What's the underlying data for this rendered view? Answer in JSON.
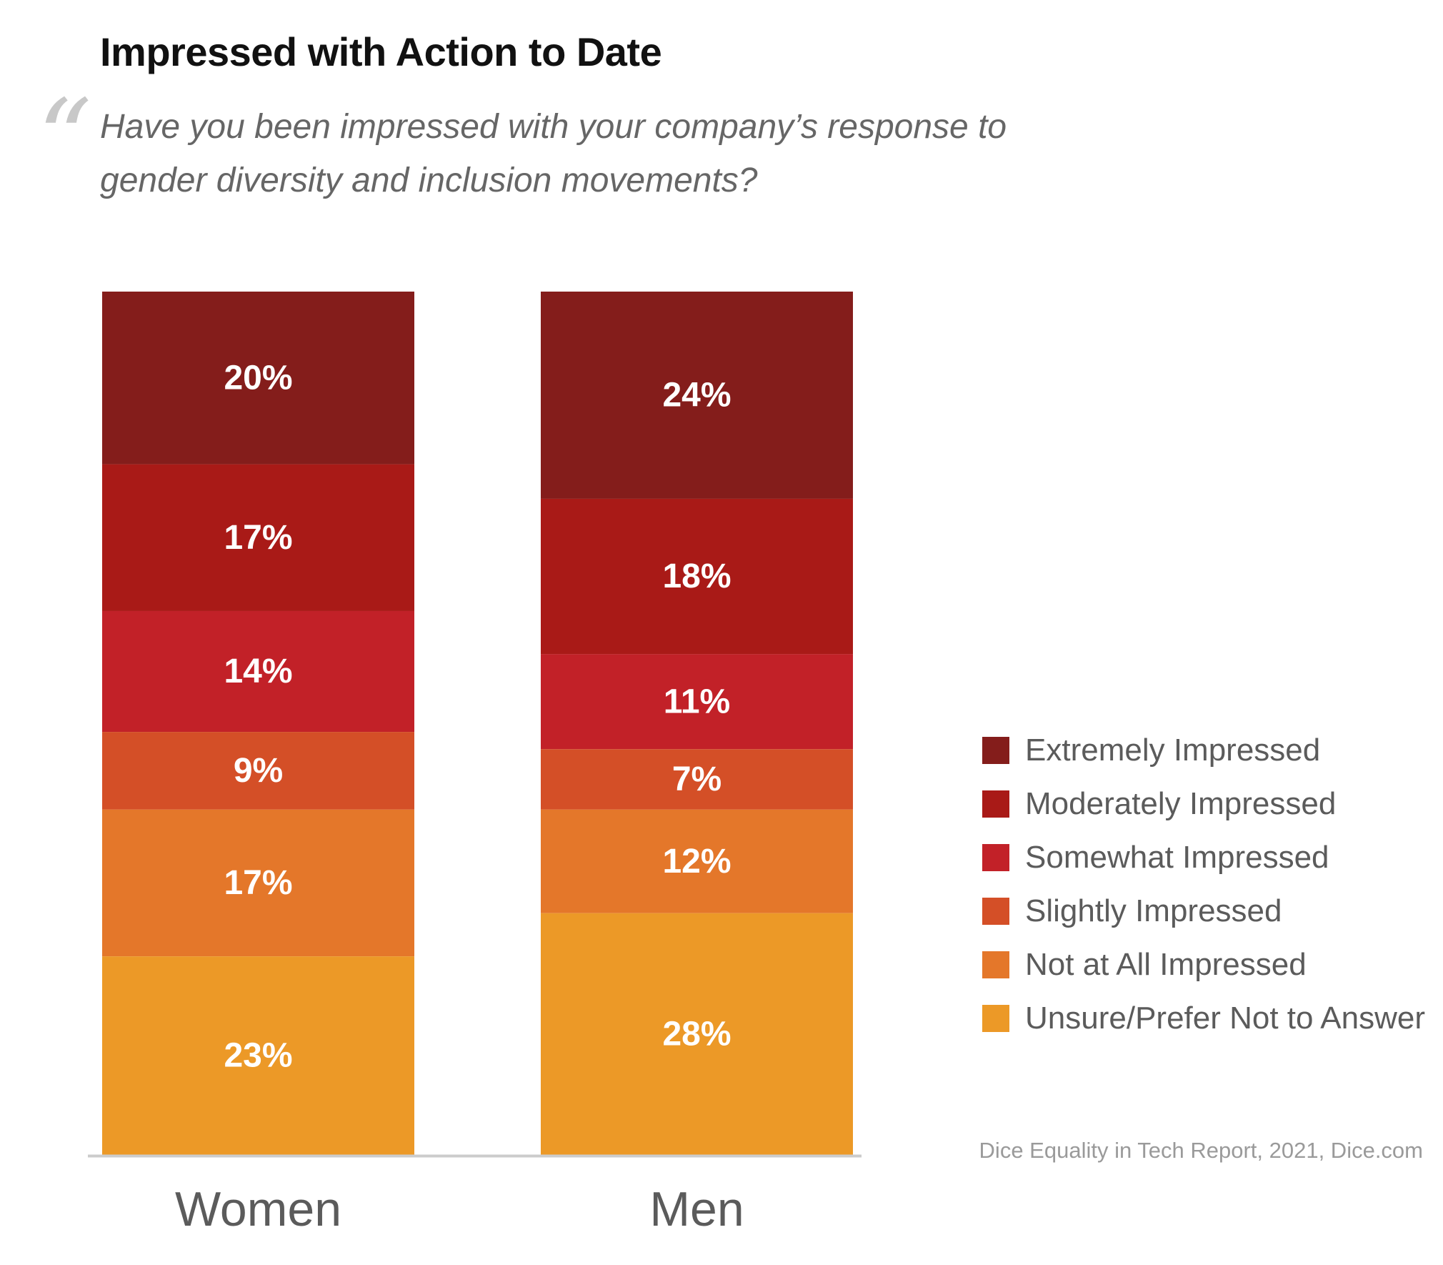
{
  "chart_data": {
    "type": "bar",
    "stacked": true,
    "title": "Impressed with Action to Date",
    "subtitle": "Have you been impressed with your company’s response to gender diversity and inclusion movements?",
    "categories": [
      "Women",
      "Men"
    ],
    "series": [
      {
        "name": "Extremely Impressed",
        "values": [
          20,
          24
        ],
        "color": "#841d1b"
      },
      {
        "name": "Moderately Impressed",
        "values": [
          17,
          18
        ],
        "color": "#a91a17"
      },
      {
        "name": "Somewhat Impressed",
        "values": [
          14,
          11
        ],
        "color": "#c22128"
      },
      {
        "name": "Slightly Impressed",
        "values": [
          9,
          7
        ],
        "color": "#d44f27"
      },
      {
        "name": "Not at All Impressed",
        "values": [
          17,
          12
        ],
        "color": "#e4772a"
      },
      {
        "name": "Unsure/Prefer Not to Answer",
        "values": [
          23,
          28
        ],
        "color": "#ec9927"
      }
    ],
    "value_suffix": "%",
    "legend_position": "right",
    "grid": false
  },
  "source": "Dice Equality in Tech Report, 2021, Dice.com",
  "colors": {
    "label_text": "#ffffff",
    "baseline": "#cccccc",
    "category_text": "#5b5b5b"
  }
}
